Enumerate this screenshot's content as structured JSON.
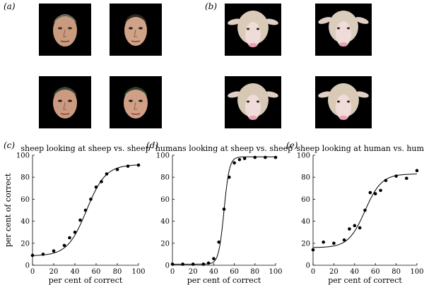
{
  "panels": {
    "a": "(a)",
    "b": "(b)",
    "c": "(c)",
    "d": "(d)",
    "e": "(e)"
  },
  "image_grids": {
    "a": {
      "subject": "human-face",
      "tiles": 4
    },
    "b": {
      "subject": "sheep-face",
      "tiles": 4
    }
  },
  "colors": {
    "tile_background": "#000000",
    "line": "#000000"
  },
  "chart_data": [
    {
      "type": "line",
      "title": "sheep looking at sheep vs. sheep",
      "xlabel": "per cent of correct",
      "ylabel": "per cent of correct",
      "xlim": [
        0,
        100
      ],
      "ylim": [
        0,
        100
      ],
      "xticks": [
        0,
        20,
        40,
        60,
        80,
        100
      ],
      "yticks": [
        0,
        20,
        40,
        60,
        80,
        100
      ],
      "grid": false,
      "points": {
        "x": [
          0,
          10,
          20,
          30,
          35,
          40,
          45,
          50,
          55,
          60,
          65,
          70,
          80,
          90,
          100
        ],
        "y": [
          9,
          10,
          13,
          18,
          25,
          30,
          41,
          50,
          60,
          71,
          76,
          83,
          87,
          90,
          91
        ]
      },
      "fit": {
        "kind": "logistic",
        "min": 8.5,
        "max": 91.5,
        "mid": 51,
        "scale": 9
      }
    },
    {
      "type": "line",
      "title": "humans looking at sheep vs. sheep",
      "xlabel": "per cent of correct",
      "ylabel": "",
      "xlim": [
        0,
        100
      ],
      "ylim": [
        0,
        100
      ],
      "xticks": [
        0,
        20,
        40,
        60,
        80,
        100
      ],
      "yticks": [
        0,
        20,
        40,
        60,
        80,
        100
      ],
      "grid": false,
      "points": {
        "x": [
          0,
          10,
          20,
          30,
          35,
          40,
          45,
          50,
          55,
          60,
          65,
          70,
          80,
          90,
          100
        ],
        "y": [
          1,
          1,
          1,
          1,
          2,
          6,
          21,
          51,
          80,
          93,
          96,
          97,
          98,
          98,
          98
        ]
      },
      "fit": {
        "kind": "logistic",
        "min": 1,
        "max": 98.5,
        "mid": 50,
        "scale": 2.6
      }
    },
    {
      "type": "line",
      "title": "sheep looking at human vs. human",
      "xlabel": "per cent of correct",
      "ylabel": "",
      "xlim": [
        0,
        100
      ],
      "ylim": [
        0,
        100
      ],
      "xticks": [
        0,
        20,
        40,
        60,
        80,
        100
      ],
      "yticks": [
        0,
        20,
        40,
        60,
        80,
        100
      ],
      "grid": false,
      "points": {
        "x": [
          0,
          10,
          20,
          30,
          35,
          40,
          45,
          50,
          55,
          60,
          65,
          70,
          80,
          90,
          100
        ],
        "y": [
          14,
          21,
          20,
          23,
          33,
          36,
          34,
          50,
          66,
          65,
          68,
          77,
          81,
          79,
          86
        ]
      },
      "fit": {
        "kind": "logistic",
        "min": 16,
        "max": 83,
        "mid": 50,
        "scale": 8
      }
    }
  ]
}
